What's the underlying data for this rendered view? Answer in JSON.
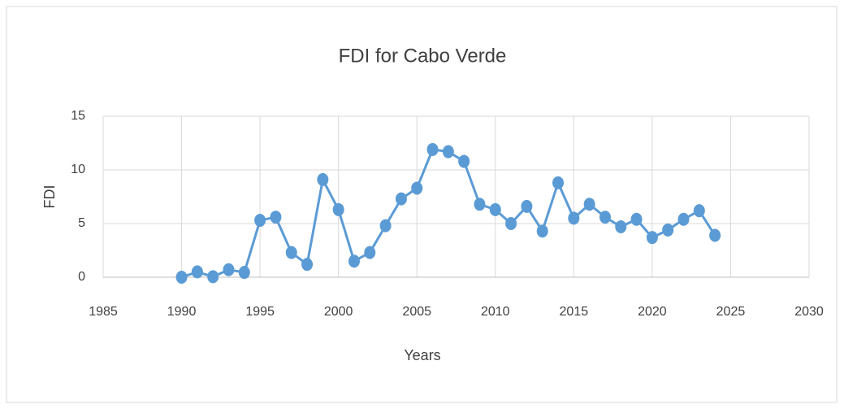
{
  "chart_data": {
    "type": "line",
    "title": "FDI for Cabo Verde",
    "xlabel": "Years",
    "ylabel": "FDI",
    "x": [
      1990,
      1991,
      1992,
      1993,
      1994,
      1995,
      1996,
      1997,
      1998,
      1999,
      2000,
      2001,
      2002,
      2003,
      2004,
      2005,
      2006,
      2007,
      2008,
      2009,
      2010,
      2011,
      2012,
      2013,
      2014,
      2015,
      2016,
      2017,
      2018,
      2019,
      2020,
      2021,
      2022,
      2023,
      2024
    ],
    "series": [
      {
        "name": "FDI",
        "color": "#5b9bd5",
        "values": [
          0.0,
          0.5,
          0.05,
          0.7,
          0.45,
          5.3,
          5.6,
          2.3,
          1.2,
          9.1,
          6.3,
          1.5,
          2.3,
          4.8,
          7.3,
          8.3,
          11.9,
          11.7,
          10.8,
          6.8,
          6.3,
          5.0,
          6.6,
          4.3,
          8.8,
          5.5,
          6.8,
          5.6,
          4.7,
          5.4,
          3.7,
          4.4,
          5.4,
          6.2,
          3.9
        ]
      }
    ],
    "xlim": [
      1985,
      2030
    ],
    "xticks": [
      1985,
      1990,
      1995,
      2000,
      2005,
      2010,
      2015,
      2020,
      2025,
      2030
    ],
    "ylim": [
      0,
      15
    ],
    "yticks": [
      0,
      5,
      10,
      15
    ],
    "grid": true
  }
}
